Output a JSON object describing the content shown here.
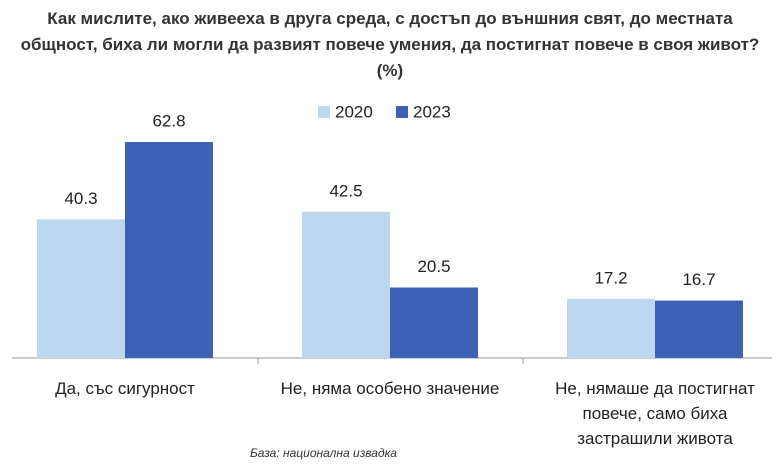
{
  "chart_data": {
    "type": "bar",
    "title": "Как мислите, ако живееха в друга среда, с достъп до външния свят, до местната общност,  биха ли могли да развият повече умения, да постигнат повече в своя живот? (%)",
    "categories": [
      "Да, със сигурност",
      "Не, няма особено значение",
      "Не, нямаше да постигнат повече, само биха застрашили живота"
    ],
    "series": [
      {
        "name": "2020",
        "color": "#bdd7ee",
        "values": [
          40.3,
          42.5,
          17.2
        ]
      },
      {
        "name": "2023",
        "color": "#3d62b5",
        "values": [
          62.8,
          20.5,
          16.7
        ]
      }
    ],
    "note": "База: национална извадка"
  }
}
